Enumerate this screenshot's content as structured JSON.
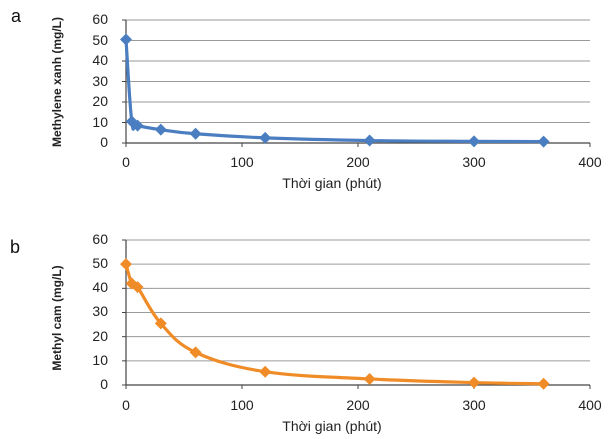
{
  "chart_data": [
    {
      "panel_label": "a",
      "type": "line",
      "xlabel": "Thời gian (phút)",
      "ylabel": "Methylene xanh (mg/L)",
      "xlim": [
        0,
        400
      ],
      "ylim": [
        0,
        60
      ],
      "x_ticks": [
        "0",
        "100",
        "200",
        "300",
        "400"
      ],
      "y_ticks": [
        "0",
        "10",
        "20",
        "30",
        "40",
        "50",
        "60"
      ],
      "grid": "horizontal",
      "series": [
        {
          "color": "#4a7ec1",
          "marker": "diamond",
          "x": [
            0,
            5,
            10,
            30,
            60,
            120,
            210,
            300,
            360
          ],
          "y": [
            50.5,
            10.5,
            8.5,
            6.5,
            4.5,
            2.5,
            1.2,
            0.8,
            0.7
          ]
        }
      ]
    },
    {
      "panel_label": "b",
      "type": "line",
      "xlabel": "Thời gian (phút)",
      "ylabel": "Methyl cam (mg/L)",
      "xlim": [
        0,
        400
      ],
      "ylim": [
        0,
        60
      ],
      "x_ticks": [
        "0",
        "100",
        "200",
        "300",
        "400"
      ],
      "y_ticks": [
        "0",
        "10",
        "20",
        "30",
        "40",
        "50",
        "60"
      ],
      "grid": "horizontal",
      "series": [
        {
          "color": "#f08c28",
          "marker": "diamond",
          "x": [
            0,
            5,
            10,
            30,
            60,
            120,
            210,
            300,
            360
          ],
          "y": [
            50,
            42,
            40.5,
            25.5,
            13.5,
            5.5,
            2.5,
            1.0,
            0.5
          ]
        }
      ]
    }
  ]
}
